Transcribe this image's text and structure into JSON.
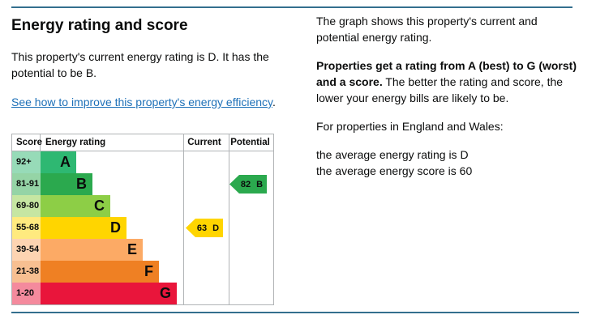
{
  "rules": {
    "color": "#336f8e"
  },
  "left": {
    "title": "Energy rating and score",
    "intro": "This property's current energy rating is D. It has the potential to be B.",
    "link": "See how to improve this property's energy efficiency",
    "link_suffix": "."
  },
  "right": {
    "para1": "The graph shows this property's current and potential energy rating.",
    "para2_bold": "Properties get a rating from A (best) to G (worst) and a score.",
    "para2_rest": " The better the rating and score, the lower your energy bills are likely to be.",
    "para3": "For properties in England and Wales:",
    "avg_rating_line": "the average energy rating is D",
    "avg_score_line": "the average energy score is 60"
  },
  "chart": {
    "headers": {
      "score": "Score",
      "rating": "Energy rating",
      "current": "Current",
      "potential": "Potential"
    },
    "border_color": "#b1b4b6",
    "bands": [
      {
        "score": "92+",
        "letter": "A",
        "color": "#2eb872",
        "tint": "#97dbb8"
      },
      {
        "score": "81-91",
        "letter": "B",
        "color": "#2ba94e",
        "tint": "#95d4a6"
      },
      {
        "score": "69-80",
        "letter": "C",
        "color": "#8dce46",
        "tint": "#c6e6a2"
      },
      {
        "score": "55-68",
        "letter": "D",
        "color": "#ffd500",
        "tint": "#ffea7f"
      },
      {
        "score": "39-54",
        "letter": "E",
        "color": "#fcaa65",
        "tint": "#fdd4b2"
      },
      {
        "score": "21-38",
        "letter": "F",
        "color": "#ef8023",
        "tint": "#f7bf91"
      },
      {
        "score": "1-20",
        "letter": "G",
        "color": "#e9153b",
        "tint": "#f48a9d"
      }
    ],
    "current": {
      "score": "63",
      "letter": "D",
      "row_index": 3,
      "color": "#ffd500"
    },
    "potential": {
      "score": "82",
      "letter": "B",
      "row_index": 1,
      "color": "#2ba94e"
    }
  },
  "chart_data": {
    "type": "bar",
    "orientation": "horizontal",
    "title": "Energy rating and score",
    "columns": [
      "Score",
      "Energy rating",
      "Current",
      "Potential"
    ],
    "categories": [
      "A",
      "B",
      "C",
      "D",
      "E",
      "F",
      "G"
    ],
    "score_ranges": [
      "92+",
      "81-91",
      "69-80",
      "55-68",
      "39-54",
      "21-38",
      "1-20"
    ],
    "band_colors": [
      "#2eb872",
      "#2ba94e",
      "#8dce46",
      "#ffd500",
      "#fcaa65",
      "#ef8023",
      "#e9153b"
    ],
    "current": {
      "score": 63,
      "rating": "D"
    },
    "potential": {
      "score": 82,
      "rating": "B"
    },
    "grid": false,
    "legend_position": "none"
  }
}
